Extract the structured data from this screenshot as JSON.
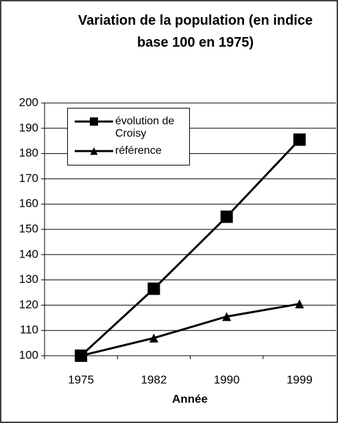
{
  "chart_data": {
    "type": "line",
    "title": "Variation de la population (en indice base 100 en 1975)",
    "x_label": "Année",
    "categories": [
      "1975",
      "1982",
      "1990",
      "1999"
    ],
    "series": [
      {
        "name": "évolution de Croisy",
        "color": "#000000",
        "marker": "square",
        "values": [
          100,
          126.5,
          155,
          185.5
        ]
      },
      {
        "name": "référence",
        "color": "#000000",
        "marker": "triangle",
        "values": [
          100,
          107,
          115.5,
          120.5
        ]
      }
    ],
    "ylim": [
      100,
      200
    ],
    "yticks": [
      100,
      110,
      120,
      130,
      140,
      150,
      160,
      170,
      180,
      190,
      200
    ],
    "grid": true
  }
}
